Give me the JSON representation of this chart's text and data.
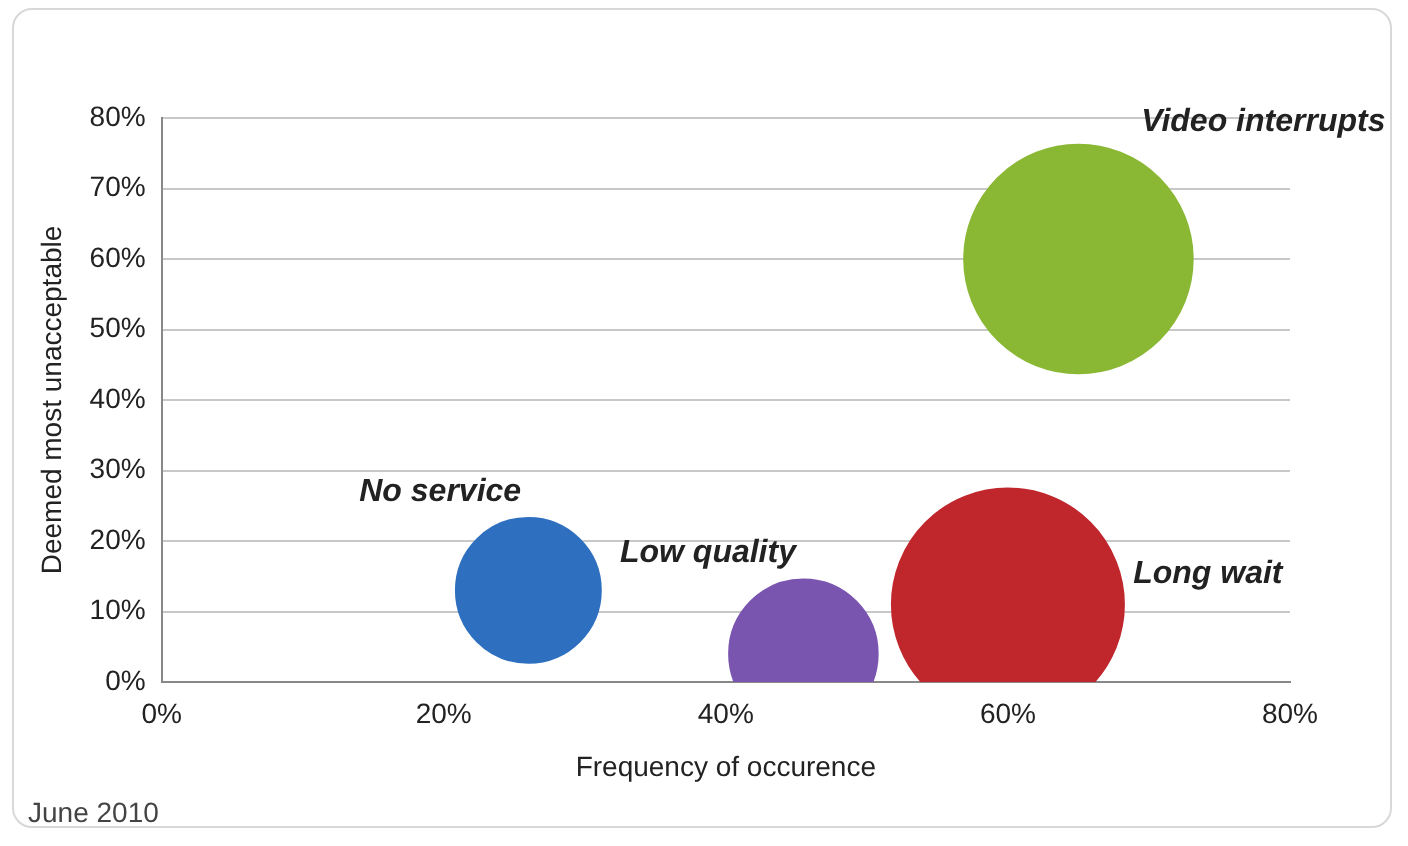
{
  "chart_data": {
    "type": "bubble",
    "xlabel": "Frequency of occurence",
    "ylabel": "Deemed most unacceptable",
    "series": [
      {
        "name": "No service",
        "color": "#2e6fbf",
        "x": [
          26
        ],
        "values": [
          13
        ],
        "sizes": [
          0.39
        ]
      },
      {
        "name": "Low quality",
        "color": "#7a55b0",
        "x": [
          45.5
        ],
        "values": [
          4
        ],
        "sizes": [
          0.41
        ]
      },
      {
        "name": "Long wait",
        "color": "#c0272d",
        "x": [
          60
        ],
        "values": [
          11
        ],
        "sizes": [
          1
        ]
      },
      {
        "name": "Video interrupts",
        "color": "#8ab834",
        "x": [
          65
        ],
        "values": [
          60
        ],
        "sizes": [
          0.97
        ]
      }
    ],
    "xlim": [
      0,
      80
    ],
    "xticks": [
      {
        "value": 0,
        "label": "0%"
      },
      {
        "value": 20,
        "label": "20%"
      },
      {
        "value": 40,
        "label": "40%"
      },
      {
        "value": 60,
        "label": "60%"
      },
      {
        "value": 80,
        "label": "80%"
      }
    ],
    "ylim": [
      0,
      80
    ],
    "yticks": [
      {
        "value": 0,
        "label": "0%"
      },
      {
        "value": 10,
        "label": "10%"
      },
      {
        "value": 20,
        "label": "20%"
      },
      {
        "value": 30,
        "label": "30%"
      },
      {
        "value": 40,
        "label": "40%"
      },
      {
        "value": 50,
        "label": "50%"
      },
      {
        "value": 60,
        "label": "60%"
      },
      {
        "value": 70,
        "label": "70%"
      },
      {
        "value": 80,
        "label": "80%"
      }
    ],
    "grid": "y",
    "legend": false,
    "annotations": [
      "June 2010"
    ]
  }
}
